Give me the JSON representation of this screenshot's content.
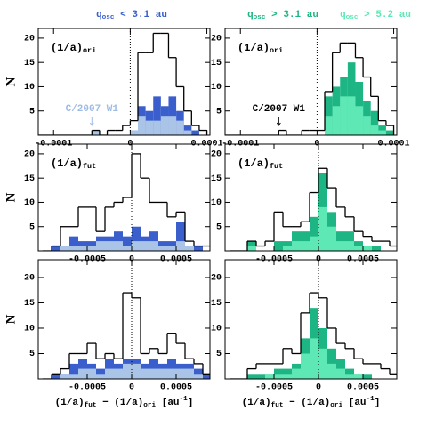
{
  "header": [
    {
      "color": "#3a5fcd",
      "parts": [
        {
          "text": "q"
        },
        {
          "text": "osc",
          "sub": true
        },
        {
          "text": " < 3.1 au"
        }
      ]
    },
    {
      "color": "#1db584",
      "parts": [
        {
          "text": "q"
        },
        {
          "text": "osc",
          "sub": true
        },
        {
          "text": " > 3.1 au"
        }
      ]
    },
    {
      "color": "#5ee8b5",
      "parts": [
        {
          "text": "q"
        },
        {
          "text": "osc",
          "sub": true
        },
        {
          "text": " > 5.2 au"
        }
      ]
    }
  ],
  "chart_data": [
    {
      "type": "histogram",
      "ylabel": "N",
      "label": [
        {
          "text": "(1/a)"
        },
        {
          "text": "ori",
          "sub": true
        }
      ],
      "marker": {
        "text": "C/2007 W1",
        "x": -5e-05,
        "color": "#9dbbe6"
      },
      "bins": [
        -0.00012,
        -0.00011,
        -0.0001,
        -9e-05,
        -8e-05,
        -7e-05,
        -6e-05,
        -5e-05,
        -4e-05,
        -3e-05,
        -2e-05,
        -1e-05,
        0,
        1e-05,
        2e-05,
        3e-05,
        4e-05,
        5e-05,
        6e-05,
        7e-05,
        8e-05,
        9e-05,
        0.0001
      ],
      "xlim": [
        -0.00012,
        0.000104
      ],
      "ylim": [
        0,
        22
      ],
      "xticks": [
        -0.0001,
        0,
        0.0001
      ],
      "yticks": [
        5,
        10,
        15,
        20
      ],
      "series": [
        {
          "style": "outline",
          "color": "#000000",
          "values": [
            0,
            0,
            0,
            0,
            0,
            0,
            0,
            1,
            0,
            1,
            1,
            2,
            3,
            17,
            17,
            21,
            21,
            16,
            10,
            5,
            2,
            1
          ]
        },
        {
          "style": "filled",
          "color": "#3a5fcd",
          "values": [
            0,
            0,
            0,
            0,
            0,
            0,
            0,
            1,
            0,
            0,
            0,
            0,
            1,
            6,
            5,
            8,
            6,
            8,
            5,
            2,
            1,
            0
          ]
        },
        {
          "style": "filled",
          "color": "#aac4e8",
          "values": [
            0,
            0,
            0,
            0,
            0,
            0,
            0,
            1,
            0,
            0,
            0,
            0,
            1,
            4,
            3,
            3,
            4,
            4,
            3,
            1,
            0,
            0
          ]
        }
      ]
    },
    {
      "type": "histogram",
      "label": [
        {
          "text": "(1/a)"
        },
        {
          "text": "ori",
          "sub": true
        }
      ],
      "marker": {
        "text": "C/2007 W1",
        "x": -5e-05,
        "color": "#000000"
      },
      "bins": [
        -0.00012,
        -0.00011,
        -0.0001,
        -9e-05,
        -8e-05,
        -7e-05,
        -6e-05,
        -5e-05,
        -4e-05,
        -3e-05,
        -2e-05,
        -1e-05,
        0,
        1e-05,
        2e-05,
        3e-05,
        4e-05,
        5e-05,
        6e-05,
        7e-05,
        8e-05,
        9e-05,
        0.0001
      ],
      "xlim": [
        -0.00012,
        0.000104
      ],
      "ylim": [
        0,
        22
      ],
      "xticks": [
        -0.0001,
        0,
        0.0001
      ],
      "yticks": [
        5,
        10,
        15,
        20
      ],
      "series": [
        {
          "style": "outline",
          "color": "#000000",
          "values": [
            0,
            0,
            0,
            0,
            0,
            0,
            0,
            1,
            0,
            0,
            1,
            1,
            1,
            9,
            17,
            19,
            19,
            16,
            12,
            8,
            3,
            2
          ]
        },
        {
          "style": "filled",
          "color": "#1db584",
          "values": [
            0,
            0,
            0,
            0,
            0,
            0,
            0,
            0,
            0,
            0,
            0,
            0,
            0,
            8,
            10,
            12,
            15,
            11,
            7,
            5,
            2,
            1
          ]
        },
        {
          "style": "filled",
          "color": "#5ee8b5",
          "values": [
            0,
            0,
            0,
            0,
            0,
            0,
            0,
            0,
            0,
            0,
            0,
            0,
            0,
            4,
            6,
            8,
            8,
            6,
            4,
            2,
            1,
            0
          ]
        }
      ]
    },
    {
      "type": "histogram",
      "ylabel": "N",
      "label": [
        {
          "text": "(1/a)"
        },
        {
          "text": "fut",
          "sub": true
        }
      ],
      "bins": [
        -0.001,
        -0.0009,
        -0.0008,
        -0.0007,
        -0.0006,
        -0.0005,
        -0.0004,
        -0.0003,
        -0.0002,
        -0.0001,
        0,
        0.0001,
        0.0002,
        0.0003,
        0.0004,
        0.0005,
        0.0006,
        0.0007,
        0.0008,
        0.0009
      ],
      "xlim": [
        -0.00105,
        0.00088
      ],
      "ylim": [
        0,
        22
      ],
      "xticks": [
        -0.0005,
        0,
        0.0005
      ],
      "yticks": [
        5,
        10,
        15,
        20
      ],
      "series": [
        {
          "style": "outline",
          "color": "#000000",
          "values": [
            0,
            1,
            5,
            5,
            9,
            9,
            4,
            9,
            10,
            11,
            20,
            15,
            10,
            10,
            7,
            8,
            2,
            1,
            1
          ]
        },
        {
          "style": "filled",
          "color": "#3a5fcd",
          "values": [
            0,
            1,
            1,
            3,
            2,
            2,
            3,
            3,
            4,
            3,
            5,
            3,
            4,
            2,
            2,
            6,
            1,
            1,
            0
          ]
        },
        {
          "style": "filled",
          "color": "#aac4e8",
          "values": [
            0,
            0,
            1,
            1,
            1,
            1,
            2,
            2,
            2,
            1,
            2,
            2,
            2,
            1,
            1,
            2,
            1,
            0,
            0
          ]
        }
      ]
    },
    {
      "type": "histogram",
      "label": [
        {
          "text": "(1/a)"
        },
        {
          "text": "fut",
          "sub": true
        }
      ],
      "bins": [
        -0.001,
        -0.0009,
        -0.0008,
        -0.0007,
        -0.0006,
        -0.0005,
        -0.0004,
        -0.0003,
        -0.0002,
        -0.0001,
        0,
        0.0001,
        0.0002,
        0.0003,
        0.0004,
        0.0005,
        0.0006,
        0.0007,
        0.0008,
        0.0009
      ],
      "xlim": [
        -0.00105,
        0.00088
      ],
      "ylim": [
        0,
        22
      ],
      "xticks": [
        -0.0005,
        0,
        0.0005
      ],
      "yticks": [
        5,
        10,
        15,
        20
      ],
      "series": [
        {
          "style": "outline",
          "color": "#000000",
          "values": [
            0,
            0,
            2,
            1,
            2,
            8,
            5,
            5,
            6,
            12,
            17,
            13,
            9,
            7,
            4,
            3,
            2,
            2,
            1
          ]
        },
        {
          "style": "filled",
          "color": "#1db584",
          "values": [
            0,
            0,
            2,
            0,
            0,
            2,
            2,
            4,
            4,
            7,
            16,
            8,
            4,
            4,
            2,
            1,
            1,
            0,
            0
          ]
        },
        {
          "style": "filled",
          "color": "#5ee8b5",
          "values": [
            0,
            0,
            1,
            0,
            0,
            0,
            1,
            2,
            2,
            3,
            9,
            5,
            2,
            2,
            1,
            1,
            0,
            0,
            0
          ]
        }
      ]
    },
    {
      "type": "histogram",
      "ylabel": "N",
      "xlabel": [
        {
          "text": "(1/a)"
        },
        {
          "text": "fut",
          "sub": true
        },
        {
          "text": " − (1/a)"
        },
        {
          "text": "ori",
          "sub": true
        },
        {
          "text": " [au"
        },
        {
          "text": "-1",
          "sup": true
        },
        {
          "text": "]"
        }
      ],
      "bins": [
        -0.001,
        -0.0009,
        -0.0008,
        -0.0007,
        -0.0006,
        -0.0005,
        -0.0004,
        -0.0003,
        -0.0002,
        -0.0001,
        0,
        0.0001,
        0.0002,
        0.0003,
        0.0004,
        0.0005,
        0.0006,
        0.0007,
        0.0008,
        0.0009
      ],
      "xlim": [
        -0.00105,
        0.00088
      ],
      "ylim": [
        0,
        23.5
      ],
      "xticks": [
        -0.0005,
        0,
        0.0005
      ],
      "yticks": [
        5,
        10,
        15,
        20
      ],
      "series": [
        {
          "style": "outline",
          "color": "#000000",
          "values": [
            0,
            1,
            2,
            5,
            5,
            7,
            4,
            5,
            4,
            17,
            16,
            5,
            6,
            5,
            9,
            7,
            4,
            3,
            1
          ]
        },
        {
          "style": "filled",
          "color": "#3a5fcd",
          "values": [
            0,
            1,
            1,
            3,
            4,
            3,
            2,
            4,
            3,
            4,
            4,
            3,
            4,
            3,
            4,
            3,
            3,
            2,
            1
          ]
        },
        {
          "style": "filled",
          "color": "#aac4e8",
          "values": [
            0,
            0,
            1,
            1,
            2,
            2,
            1,
            2,
            2,
            3,
            3,
            2,
            2,
            2,
            2,
            2,
            2,
            1,
            0
          ]
        }
      ]
    },
    {
      "type": "histogram",
      "xlabel": [
        {
          "text": "(1/a)"
        },
        {
          "text": "fut",
          "sub": true
        },
        {
          "text": " − (1/a)"
        },
        {
          "text": "ori",
          "sub": true
        },
        {
          "text": " [au"
        },
        {
          "text": "-1",
          "sup": true
        },
        {
          "text": "]"
        }
      ],
      "bins": [
        -0.001,
        -0.0009,
        -0.0008,
        -0.0007,
        -0.0006,
        -0.0005,
        -0.0004,
        -0.0003,
        -0.0002,
        -0.0001,
        0,
        0.0001,
        0.0002,
        0.0003,
        0.0004,
        0.0005,
        0.0006,
        0.0007,
        0.0008,
        0.0009
      ],
      "xlim": [
        -0.00105,
        0.00088
      ],
      "ylim": [
        0,
        23.5
      ],
      "xticks": [
        -0.0005,
        0,
        0.0005
      ],
      "yticks": [
        5,
        10,
        15,
        20
      ],
      "series": [
        {
          "style": "outline",
          "color": "#000000",
          "values": [
            0,
            0,
            2,
            3,
            3,
            3,
            6,
            5,
            13,
            17,
            16,
            10,
            7,
            6,
            4,
            3,
            3,
            2,
            1
          ]
        },
        {
          "style": "filled",
          "color": "#1db584",
          "values": [
            0,
            0,
            1,
            1,
            1,
            2,
            2,
            3,
            8,
            14,
            10,
            6,
            4,
            2,
            1,
            1,
            0,
            0,
            0
          ]
        },
        {
          "style": "filled",
          "color": "#5ee8b5",
          "values": [
            0,
            0,
            0,
            0,
            1,
            1,
            1,
            2,
            5,
            8,
            6,
            3,
            2,
            1,
            1,
            0,
            0,
            0,
            0
          ]
        }
      ]
    }
  ]
}
